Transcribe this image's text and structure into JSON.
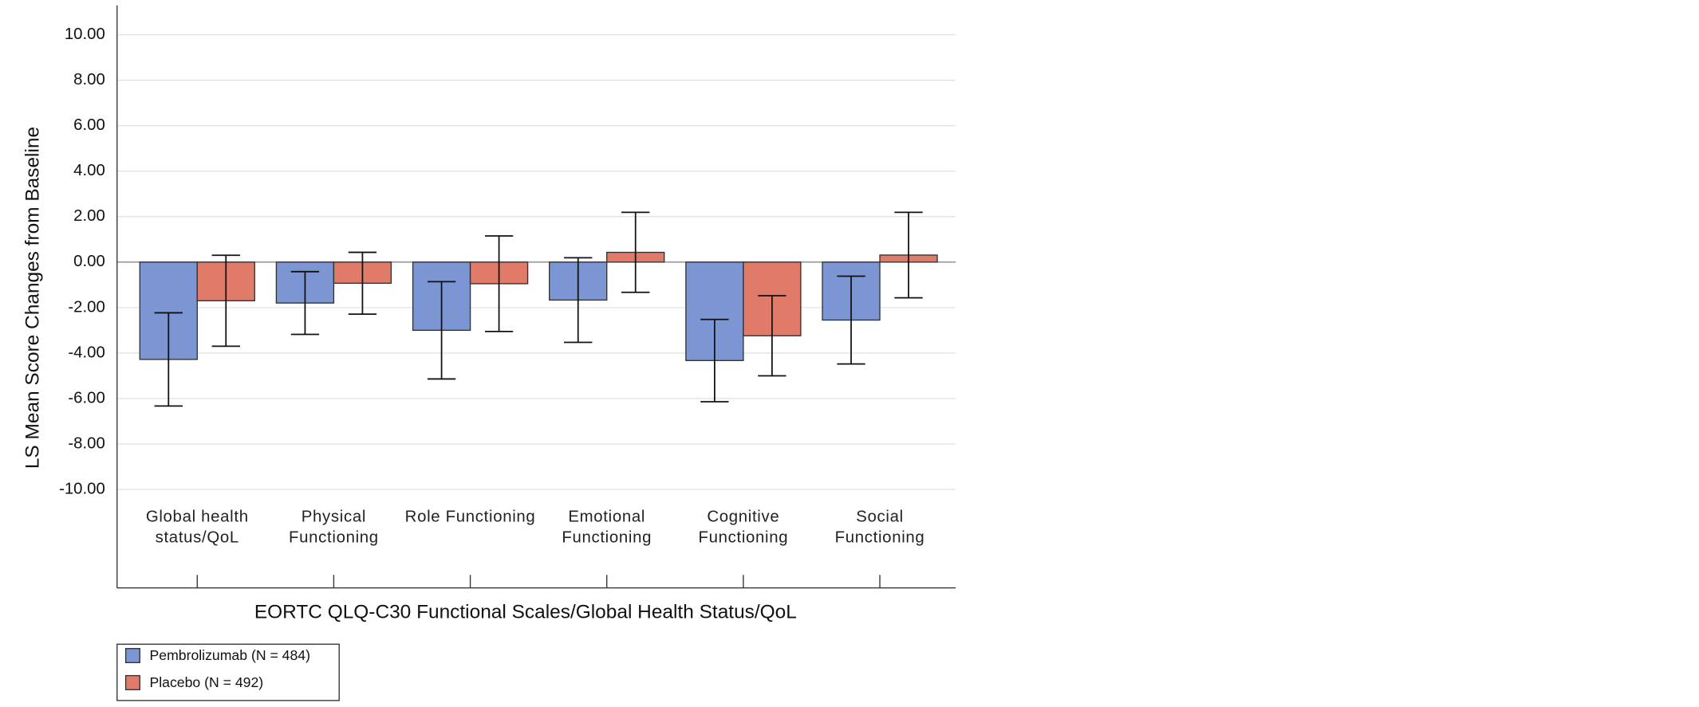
{
  "chart_data": {
    "type": "bar",
    "y_label": "LS Mean Score Changes from Baseline",
    "x_label": "EORTC QLQ-C30 Functional Scales/Global Health Status/QoL",
    "categories": [
      "Global health status/QoL",
      "Physical Functioning",
      "Role Functioning",
      "Emotional Functioning",
      "Cognitive Functioning",
      "Social Functioning"
    ],
    "series": [
      {
        "name": "Pembrolizumab (N = 484)",
        "color": "#7b96d2",
        "values": [
          -4.28,
          -1.8,
          -3.0,
          -1.67,
          -4.33,
          -2.55
        ],
        "errors": [
          2.05,
          1.38,
          2.14,
          1.86,
          1.81,
          1.93
        ]
      },
      {
        "name": "Placebo (N = 492)",
        "color": "#e07b6a",
        "values": [
          -1.7,
          -0.93,
          -0.95,
          0.43,
          -3.24,
          0.31
        ],
        "errors": [
          2.0,
          1.36,
          2.1,
          1.76,
          1.76,
          1.88
        ]
      }
    ],
    "ylim": [
      -14.33,
      11.29
    ],
    "yticks": [
      {
        "value": -10,
        "label": "-10.00"
      },
      {
        "value": -8,
        "label": "-8.00"
      },
      {
        "value": -6,
        "label": "-6.00"
      },
      {
        "value": -4,
        "label": "-4.00"
      },
      {
        "value": -2,
        "label": "-2.00"
      },
      {
        "value": 0,
        "label": "0.00"
      },
      {
        "value": 2,
        "label": "2.00"
      },
      {
        "value": 4,
        "label": "4.00"
      },
      {
        "value": 6,
        "label": "6.00"
      },
      {
        "value": 8,
        "label": "8.00"
      },
      {
        "value": 10,
        "label": "10.00"
      }
    ],
    "grid": true
  }
}
